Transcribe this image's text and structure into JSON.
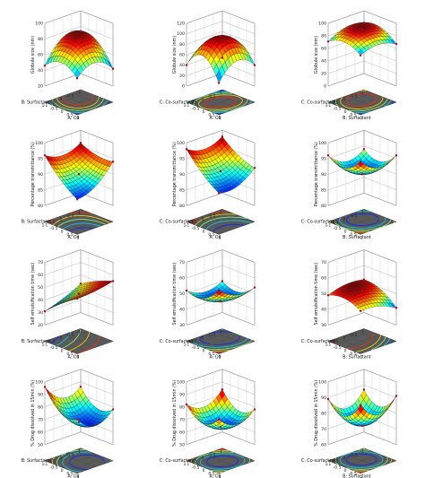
{
  "chart_data": [
    {
      "type": "surface",
      "ztitle": "Globule size (nm)",
      "xlabel": "A: Oil",
      "ylabel": "B: Surfactant",
      "zticks": [
        "20",
        "40",
        "60",
        "80",
        "100"
      ],
      "zlim": [
        20,
        100
      ],
      "xticks": [
        "-1",
        "-0.5",
        "0",
        "0.5",
        "1"
      ],
      "yticks": [
        "-1",
        "-0.5",
        "0",
        "0.5",
        "1"
      ],
      "surface": {
        "c": 78,
        "a": -8,
        "b": -6,
        "ab": 8,
        "aa": -12,
        "bb": -14
      },
      "palette": "jet"
    },
    {
      "type": "surface",
      "ztitle": "Globule size (nm)",
      "xlabel": "A: Oil",
      "ylabel": "C: Co-surfactant",
      "zticks": [
        "0",
        "20",
        "40",
        "60",
        "80",
        "100",
        "120"
      ],
      "zlim": [
        0,
        120
      ],
      "xticks": [
        "-1",
        "-0.5",
        "0",
        "0.5",
        "1"
      ],
      "yticks": [
        "-1",
        "-0.5",
        "0",
        "0.5",
        "1"
      ],
      "surface": {
        "c": 95,
        "a": 0,
        "b": 0,
        "ab": -5,
        "aa": -35,
        "bb": -25
      },
      "palette": "jet"
    },
    {
      "type": "surface",
      "ztitle": "Globule size (nm)",
      "xlabel": "B: Surfactant",
      "ylabel": "C: Co-surfactant",
      "zticks": [
        "0",
        "20",
        "40",
        "60",
        "80",
        "100"
      ],
      "zlim": [
        0,
        100
      ],
      "xticks": [
        "-1",
        "-0.5",
        "0",
        "0.5",
        "1"
      ],
      "yticks": [
        "-1",
        "-0.5",
        "0",
        "0.5",
        "1"
      ],
      "surface": {
        "c": 90,
        "a": -4,
        "b": -2,
        "ab": 3,
        "aa": -10,
        "bb": -8
      },
      "palette": "jet"
    },
    {
      "type": "surface",
      "ztitle": "Percentage transmittance (%)",
      "xlabel": "A: Oil",
      "ylabel": "B: Surfactant",
      "zticks": [
        "80",
        "85",
        "90",
        "95",
        "100"
      ],
      "zlim": [
        80,
        100
      ],
      "xticks": [
        "-1",
        "-0.5",
        "0",
        "0.5",
        "1"
      ],
      "yticks": [
        "-1",
        "-0.5",
        "0",
        "0.5",
        "1"
      ],
      "surface": {
        "c": 90,
        "a": -3,
        "b": -2,
        "ab": -2,
        "aa": 1,
        "bb": 2
      },
      "palette": "jet"
    },
    {
      "type": "surface",
      "ztitle": "Percentage transmittance (%)",
      "xlabel": "A: Oil",
      "ylabel": "C: Co-surfactant",
      "zticks": [
        "80",
        "85",
        "90",
        "95",
        "100"
      ],
      "zlim": [
        80,
        100
      ],
      "xticks": [
        "-1",
        "-0.5",
        "0",
        "0.5",
        "1"
      ],
      "yticks": [
        "-1",
        "-0.5",
        "0",
        "0.5",
        "1"
      ],
      "surface": {
        "c": 91,
        "a": -4,
        "b": -1,
        "ab": -1,
        "aa": 1,
        "bb": 2
      },
      "palette": "jet"
    },
    {
      "type": "surface",
      "ztitle": "Percentage transmittance (%)",
      "xlabel": "B: Surfactant",
      "ylabel": "C: Co-surfactant",
      "zticks": [
        "80",
        "85",
        "90",
        "95",
        "100"
      ],
      "zlim": [
        80,
        100
      ],
      "xticks": [
        "-1",
        "-0.5",
        "0",
        "0.5",
        "1"
      ],
      "yticks": [
        "-1",
        "-0.5",
        "0",
        "0.5",
        "1"
      ],
      "surface": {
        "c": 90,
        "a": 1,
        "b": 1,
        "ab": 0,
        "aa": 3,
        "bb": 3
      },
      "palette": "jet"
    },
    {
      "type": "surface",
      "ztitle": "Self emulsification time (sec)",
      "xlabel": "A: Oil",
      "ylabel": "B: Surfactant",
      "zticks": [
        "20",
        "30",
        "40",
        "50",
        "60",
        "70"
      ],
      "zlim": [
        20,
        70
      ],
      "xticks": [
        "-1",
        "-0.5",
        "0",
        "0.5",
        "1"
      ],
      "yticks": [
        "-1",
        "-0.5",
        "0",
        "0.5",
        "1"
      ],
      "surface": {
        "c": 45,
        "a": 8,
        "b": -4,
        "ab": 2,
        "aa": -1,
        "bb": 1
      },
      "palette": "jet"
    },
    {
      "type": "surface",
      "ztitle": "Self emulsification time (sec)",
      "xlabel": "A: Oil",
      "ylabel": "C: Co-surfactant",
      "zticks": [
        "30",
        "40",
        "50",
        "60",
        "70"
      ],
      "zlim": [
        30,
        70
      ],
      "xticks": [
        "-1",
        "-0.5",
        "0",
        "0.5",
        "1"
      ],
      "yticks": [
        "-1",
        "-0.5",
        "0",
        "0.5",
        "1"
      ],
      "surface": {
        "c": 45,
        "a": 3,
        "b": 2,
        "ab": 1,
        "aa": 5,
        "bb": 4
      },
      "palette": "jet"
    },
    {
      "type": "surface",
      "ztitle": "Self emulsification time (sec)",
      "xlabel": "B: Surfactant",
      "ylabel": "C: Co-surfactant",
      "zticks": [
        "30",
        "40",
        "50",
        "60",
        "70"
      ],
      "zlim": [
        30,
        70
      ],
      "xticks": [
        "-1",
        "-0.5",
        "0",
        "0.5",
        "1"
      ],
      "yticks": [
        "-1",
        "-0.5",
        "0",
        "0.5",
        "1"
      ],
      "surface": {
        "c": 52,
        "a": -3,
        "b": 1,
        "ab": 2,
        "aa": -3,
        "bb": -2
      },
      "palette": "jet"
    },
    {
      "type": "surface",
      "ztitle": "% Drug dissolved in 15min (%)",
      "xlabel": "A: Oil",
      "ylabel": "B: Surfactant",
      "zticks": [
        "50",
        "60",
        "70",
        "80",
        "90",
        "100"
      ],
      "zlim": [
        50,
        100
      ],
      "xticks": [
        "-1",
        "-0.5",
        "0",
        "0.5",
        "1"
      ],
      "yticks": [
        "-1",
        "-0.5",
        "0",
        "0.5",
        "1"
      ],
      "surface": {
        "c": 68,
        "a": -6,
        "b": 3,
        "ab": -2,
        "aa": 8,
        "bb": 9
      },
      "palette": "jet"
    },
    {
      "type": "surface",
      "ztitle": "% Drug dissolved in 15min (%)",
      "xlabel": "A: Oil",
      "ylabel": "C: Co-surfactant",
      "zticks": [
        "50",
        "60",
        "70",
        "80",
        "90",
        "100"
      ],
      "zlim": [
        50,
        100
      ],
      "xticks": [
        "-1",
        "-0.5",
        "0",
        "0.5",
        "1"
      ],
      "yticks": [
        "-1",
        "-0.5",
        "0",
        "0.5",
        "1"
      ],
      "surface": {
        "c": 64,
        "a": -2,
        "b": 0,
        "ab": 1,
        "aa": 9,
        "bb": 8
      },
      "palette": "jet"
    },
    {
      "type": "surface",
      "ztitle": "% Drug dissolved in 15min (%)",
      "xlabel": "B: Surfactant",
      "ylabel": "C: Co-surfactant",
      "zticks": [
        "60",
        "70",
        "80",
        "90",
        "100"
      ],
      "zlim": [
        60,
        100
      ],
      "xticks": [
        "-1",
        "-0.5",
        "0",
        "0.5",
        "1"
      ],
      "yticks": [
        "-1",
        "-0.5",
        "0",
        "0.5",
        "1"
      ],
      "surface": {
        "c": 72,
        "a": 2,
        "b": 1,
        "ab": 0,
        "aa": 9,
        "bb": 9
      },
      "palette": "jet"
    }
  ]
}
